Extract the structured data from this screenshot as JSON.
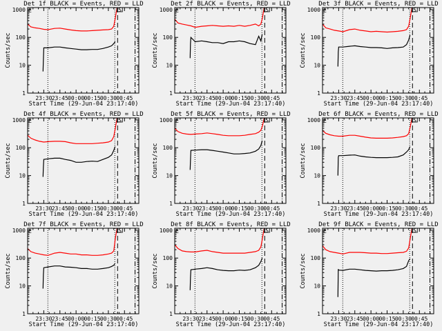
{
  "chart_data": [
    {
      "type": "line",
      "title": "Det 1f BLACK = Events, RED = LLD",
      "xlabel": "Start Time (29-Jun-04 23:17:40)",
      "ylabel": "Counts/sec",
      "series": [
        {
          "name": "LLD",
          "color": "#ff0000",
          "values": [
            300,
            240,
            220,
            210,
            195,
            190,
            210,
            215,
            200,
            185,
            175,
            170,
            170,
            175,
            180,
            185,
            190,
            200,
            250,
            500,
            1150
          ]
        },
        {
          "name": "Events",
          "color": "#000000",
          "values": [
            6,
            15,
            42,
            42,
            45,
            45,
            42,
            40,
            38,
            36,
            36,
            37,
            37,
            40,
            45,
            50,
            60,
            70
          ]
        }
      ]
    },
    {
      "type": "line",
      "title": "Det 2f BLACK = Events, RED = LLD",
      "xlabel": "Start Time (29-Jun-04 23:17:40)",
      "ylabel": "Counts/sec",
      "series": [
        {
          "name": "LLD",
          "color": "#ff0000",
          "values": [
            450,
            330,
            300,
            280,
            260,
            230,
            250,
            260,
            270,
            260,
            250,
            260,
            250,
            270,
            250,
            270,
            300,
            260,
            300,
            500,
            1150
          ]
        },
        {
          "name": "Events",
          "color": "#000000",
          "values": [
            18,
            60,
            100,
            70,
            75,
            70,
            65,
            65,
            60,
            70,
            70,
            75,
            70,
            60,
            55,
            110,
            75,
            130
          ]
        }
      ]
    },
    {
      "type": "line",
      "title": "Det 3f BLACK = Events, RED = LLD",
      "xlabel": "Start Time (29-Jun-04 23:17:40)",
      "ylabel": "Counts/sec",
      "series": [
        {
          "name": "LLD",
          "color": "#ff0000",
          "values": [
            300,
            220,
            200,
            180,
            170,
            160,
            190,
            200,
            180,
            170,
            160,
            165,
            160,
            155,
            160,
            165,
            175,
            190,
            250,
            500,
            1150
          ]
        },
        {
          "name": "Events",
          "color": "#000000",
          "values": [
            9,
            30,
            45,
            45,
            48,
            50,
            47,
            45,
            43,
            43,
            42,
            40,
            42,
            43,
            45,
            55,
            80,
            120
          ]
        }
      ]
    },
    {
      "type": "line",
      "title": "Det 4f BLACK = Events, RED = LLD",
      "xlabel": "Start Time (29-Jun-04 23:17:40)",
      "ylabel": "Counts/sec",
      "series": [
        {
          "name": "LLD",
          "color": "#ff0000",
          "values": [
            280,
            220,
            190,
            170,
            160,
            165,
            170,
            170,
            165,
            150,
            140,
            140,
            140,
            140,
            145,
            150,
            160,
            180,
            250,
            500,
            1150
          ]
        },
        {
          "name": "Events",
          "color": "#000000",
          "values": [
            9,
            20,
            38,
            40,
            42,
            42,
            38,
            35,
            30,
            30,
            32,
            33,
            32,
            38,
            45,
            55,
            80,
            110
          ]
        }
      ]
    },
    {
      "type": "line",
      "title": "Det 5f BLACK = Events, RED = LLD",
      "xlabel": "Start Time (29-Jun-04 23:17:40)",
      "ylabel": "Counts/sec",
      "series": [
        {
          "name": "LLD",
          "color": "#ff0000",
          "values": [
            500,
            380,
            330,
            310,
            300,
            310,
            320,
            340,
            320,
            300,
            280,
            270,
            270,
            270,
            280,
            300,
            320,
            360,
            420,
            600,
            1150
          ]
        },
        {
          "name": "Events",
          "color": "#000000",
          "values": [
            16,
            35,
            80,
            82,
            85,
            85,
            80,
            75,
            70,
            65,
            60,
            60,
            62,
            65,
            75,
            90,
            120,
            180
          ]
        }
      ]
    },
    {
      "type": "line",
      "title": "Det 6f BLACK = Events, RED = LLD",
      "xlabel": "Start Time (29-Jun-04 23:17:40)",
      "ylabel": "Counts/sec",
      "series": [
        {
          "name": "LLD",
          "color": "#ff0000",
          "values": [
            420,
            330,
            290,
            270,
            260,
            260,
            280,
            280,
            260,
            240,
            225,
            220,
            220,
            220,
            225,
            235,
            250,
            270,
            320,
            550,
            1150
          ]
        },
        {
          "name": "Events",
          "color": "#000000",
          "values": [
            10,
            45,
            52,
            52,
            54,
            55,
            50,
            47,
            45,
            44,
            44,
            44,
            45,
            47,
            55,
            70,
            85,
            110
          ]
        }
      ]
    },
    {
      "type": "line",
      "title": "Det 7f BLACK = Events, RED = LLD",
      "xlabel": "Start Time (29-Jun-04 23:17:40)",
      "ylabel": "Counts/sec",
      "series": [
        {
          "name": "LLD",
          "color": "#ff0000",
          "values": [
            220,
            170,
            150,
            140,
            130,
            125,
            150,
            160,
            150,
            140,
            140,
            130,
            130,
            125,
            125,
            130,
            140,
            150,
            180,
            500,
            1150
          ]
        },
        {
          "name": "Events",
          "color": "#000000",
          "values": [
            8,
            25,
            45,
            48,
            52,
            52,
            48,
            47,
            45,
            42,
            42,
            40,
            40,
            42,
            45,
            50,
            55,
            65
          ]
        }
      ]
    },
    {
      "type": "line",
      "title": "Det 8f BLACK = Events, RED = LLD",
      "xlabel": "Start Time (29-Jun-04 23:17:40)",
      "ylabel": "Counts/sec",
      "series": [
        {
          "name": "LLD",
          "color": "#ff0000",
          "values": [
            300,
            220,
            180,
            170,
            165,
            165,
            180,
            190,
            170,
            160,
            150,
            150,
            150,
            150,
            150,
            160,
            170,
            190,
            250,
            500,
            1150
          ]
        },
        {
          "name": "Events",
          "color": "#000000",
          "values": [
            7,
            20,
            38,
            40,
            42,
            45,
            42,
            38,
            36,
            35,
            35,
            37,
            36,
            38,
            45,
            55,
            75,
            100
          ]
        }
      ]
    },
    {
      "type": "line",
      "title": "Det 9f BLACK = Events, RED = LLD",
      "xlabel": "Start Time (29-Jun-04 23:17:40)",
      "ylabel": "Counts/sec",
      "series": [
        {
          "name": "LLD",
          "color": "#ff0000",
          "values": [
            280,
            200,
            170,
            160,
            150,
            140,
            160,
            160,
            160,
            155,
            150,
            150,
            145,
            145,
            150,
            155,
            160,
            175,
            230,
            500,
            1150
          ]
        },
        {
          "name": "Events",
          "color": "#000000",
          "values": [
            4,
            40,
            37,
            36,
            40,
            40,
            38,
            36,
            35,
            34,
            35,
            35,
            36,
            38,
            42,
            50,
            80,
            95
          ]
        }
      ]
    }
  ],
  "shared": {
    "x_unit": "minutes after 23:00 on 29-Jun-04",
    "xlim": [
      15,
      118.3
    ],
    "ylim": [
      1,
      1175
    ],
    "yscale": "log",
    "lld_x": [
      15,
      18,
      22,
      26,
      30,
      34,
      40,
      45,
      50,
      55,
      60,
      65,
      70,
      75,
      80,
      85,
      90,
      93,
      95,
      96.5,
      98
    ],
    "events_x": [
      29.3,
      29.6,
      30,
      34,
      40,
      45,
      50,
      55,
      60,
      65,
      70,
      75,
      80,
      85,
      90,
      93,
      95,
      96.3
    ],
    "x_ticks": [
      30,
      45,
      60,
      75,
      90,
      105
    ],
    "x_tick_labels": [
      "23:30",
      "23:45",
      "00:00",
      "00:15",
      "00:30",
      "00:45"
    ],
    "y_ticks": [
      1,
      10,
      100,
      1000
    ],
    "y_tick_labels": [
      "1",
      "10",
      "100",
      "1000"
    ],
    "dotted_lines_x": [
      33.8,
      96
    ],
    "dashed_line_x": 98.6,
    "dashdot_line_x": 114.8,
    "marker_left": "E",
    "marker_box": "S",
    "grid": false,
    "background": "#f0f0f0"
  }
}
